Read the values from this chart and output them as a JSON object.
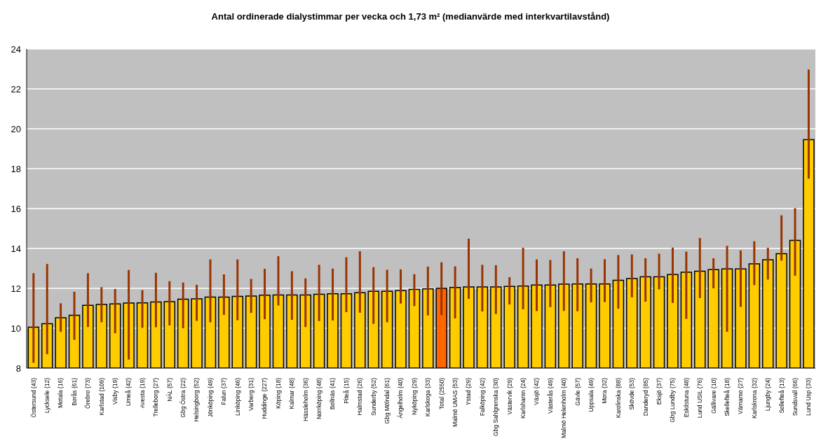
{
  "chart_data": {
    "type": "bar",
    "title": "Antal ordinerade dialystimmar per vecka och 1,73 m² (medianvärde med interkvartilavstånd)",
    "categories": [
      "Östersund (43)",
      "Lycksele (12)",
      "Motala (16)",
      "Borås (61)",
      "Örebro (73)",
      "Karlstad (109)",
      "Visby (19)",
      "Umeå (42)",
      "Avesta (19)",
      "Trelleborg (27)",
      "NÄL (57)",
      "Gbg Östra (22)",
      "Helsingborg (52)",
      "Jönköping (49)",
      "Falun (37)",
      "Linköping (46)",
      "Varberg (31)",
      "Huddinge (227)",
      "Köping (18)",
      "Kalmar (48)",
      "Hässleholm (36)",
      "Norrköping (48)",
      "Bollnäs (41)",
      "Piteå (15)",
      "Halmstad (26)",
      "Sunderby (52)",
      "Gbg Mölndal (61)",
      "Ängelholm (40)",
      "Nyköping (29)",
      "Karlskoga (33)",
      "Total (2550)",
      "Malmö UMAS (53)",
      "Ystad (29)",
      "Falköping (42)",
      "Gbg Sahlgrenska (30)",
      "Västervik (29)",
      "Karlshamn (24)",
      "Växjö (42)",
      "Västerås (49)",
      "Malmö Helenholm (40)",
      "Gävle (57)",
      "Uppsala (49)",
      "Mora (32)",
      "Karolinska (88)",
      "Skövde (53)",
      "Danderyd (85)",
      "Eksjö (37)",
      "Gbg Lundby (75)",
      "Eskilstuna (48)",
      "Lund USIL (76)",
      "Gällivare (10)",
      "Skellefteå (18)",
      "Värnamo (27)",
      "Karlskrona (32)",
      "Ljungby (24)",
      "Sollefteå (13)",
      "Sundsvall (66)",
      "Lund Usp (33)"
    ],
    "values": [
      10.05,
      10.23,
      10.53,
      10.65,
      11.15,
      11.19,
      11.22,
      11.26,
      11.27,
      11.32,
      11.33,
      11.46,
      11.47,
      11.56,
      11.56,
      11.6,
      11.61,
      11.66,
      11.67,
      11.67,
      11.67,
      11.7,
      11.73,
      11.73,
      11.78,
      11.85,
      11.85,
      11.89,
      11.95,
      11.97,
      12.0,
      12.04,
      12.07,
      12.07,
      12.07,
      12.1,
      12.11,
      12.17,
      12.17,
      12.21,
      12.22,
      12.22,
      12.22,
      12.4,
      12.49,
      12.58,
      12.58,
      12.69,
      12.81,
      12.86,
      12.94,
      12.97,
      12.97,
      13.23,
      13.43,
      13.74,
      14.4,
      19.46
    ],
    "errors": [
      [
        8.27,
        12.76
      ],
      [
        8.7,
        13.22
      ],
      [
        9.82,
        11.25
      ],
      [
        9.42,
        11.83
      ],
      [
        10.06,
        12.76
      ],
      [
        10.3,
        12.06
      ],
      [
        9.75,
        11.97
      ],
      [
        8.43,
        12.92
      ],
      [
        10.02,
        11.91
      ],
      [
        10.05,
        12.78
      ],
      [
        10.14,
        12.36
      ],
      [
        10.0,
        12.29
      ],
      [
        10.37,
        12.18
      ],
      [
        10.3,
        13.45
      ],
      [
        10.67,
        12.7
      ],
      [
        10.4,
        13.45
      ],
      [
        10.77,
        12.47
      ],
      [
        10.45,
        12.98
      ],
      [
        11.14,
        13.61
      ],
      [
        10.42,
        12.86
      ],
      [
        10.06,
        12.5
      ],
      [
        10.36,
        13.18
      ],
      [
        10.39,
        12.99
      ],
      [
        10.81,
        13.56
      ],
      [
        10.78,
        13.86
      ],
      [
        10.22,
        13.06
      ],
      [
        10.3,
        12.93
      ],
      [
        11.24,
        12.95
      ],
      [
        11.11,
        12.71
      ],
      [
        10.64,
        13.09
      ],
      [
        10.66,
        13.31
      ],
      [
        10.49,
        13.1
      ],
      [
        11.47,
        14.49
      ],
      [
        10.84,
        13.18
      ],
      [
        10.71,
        13.16
      ],
      [
        11.19,
        12.56
      ],
      [
        10.95,
        14.03
      ],
      [
        10.86,
        13.45
      ],
      [
        11.06,
        13.42
      ],
      [
        10.87,
        13.86
      ],
      [
        10.85,
        13.51
      ],
      [
        11.3,
        12.99
      ],
      [
        11.31,
        13.46
      ],
      [
        10.98,
        13.67
      ],
      [
        11.55,
        13.7
      ],
      [
        11.33,
        13.51
      ],
      [
        11.95,
        13.74
      ],
      [
        11.27,
        14.04
      ],
      [
        10.47,
        13.84
      ],
      [
        11.51,
        14.52
      ],
      [
        12.0,
        13.51
      ],
      [
        9.82,
        14.13
      ],
      [
        11.07,
        13.9
      ],
      [
        12.16,
        14.36
      ],
      [
        12.44,
        14.03
      ],
      [
        13.39,
        15.66
      ],
      [
        12.63,
        16.02
      ],
      [
        17.5,
        22.97
      ]
    ],
    "colors": [
      "#ffcc00",
      "#ffcc00",
      "#ffcc00",
      "#ffcc00",
      "#ffcc00",
      "#ffcc00",
      "#ffcc00",
      "#ffcc00",
      "#ffcc00",
      "#ffcc00",
      "#ffcc00",
      "#ffcc00",
      "#ffcc00",
      "#ffcc00",
      "#ffcc00",
      "#ffcc00",
      "#ffcc00",
      "#ffcc00",
      "#ffcc00",
      "#ffcc00",
      "#ffcc00",
      "#ffcc00",
      "#ffcc00",
      "#ffcc00",
      "#ffcc00",
      "#ffcc00",
      "#ffcc00",
      "#ffcc00",
      "#ffcc00",
      "#ffcc00",
      "#ff6600",
      "#ffcc00",
      "#ffcc00",
      "#ffcc00",
      "#ffcc00",
      "#ffcc00",
      "#ffcc00",
      "#ffcc00",
      "#ffcc00",
      "#ffcc00",
      "#ffcc00",
      "#ffcc00",
      "#ffcc00",
      "#ffcc00",
      "#ffcc00",
      "#ffcc00",
      "#ffcc00",
      "#ffcc00",
      "#ffcc00",
      "#ffcc00",
      "#ffcc00",
      "#ffcc00",
      "#ffcc00",
      "#ffcc00",
      "#ffcc00",
      "#ffcc00",
      "#ffcc00",
      "#ffcc00"
    ],
    "ylim": [
      8,
      24
    ],
    "yticks": [
      8,
      10,
      12,
      14,
      16,
      18,
      20,
      22,
      24
    ],
    "grid": "y",
    "legend": false
  }
}
